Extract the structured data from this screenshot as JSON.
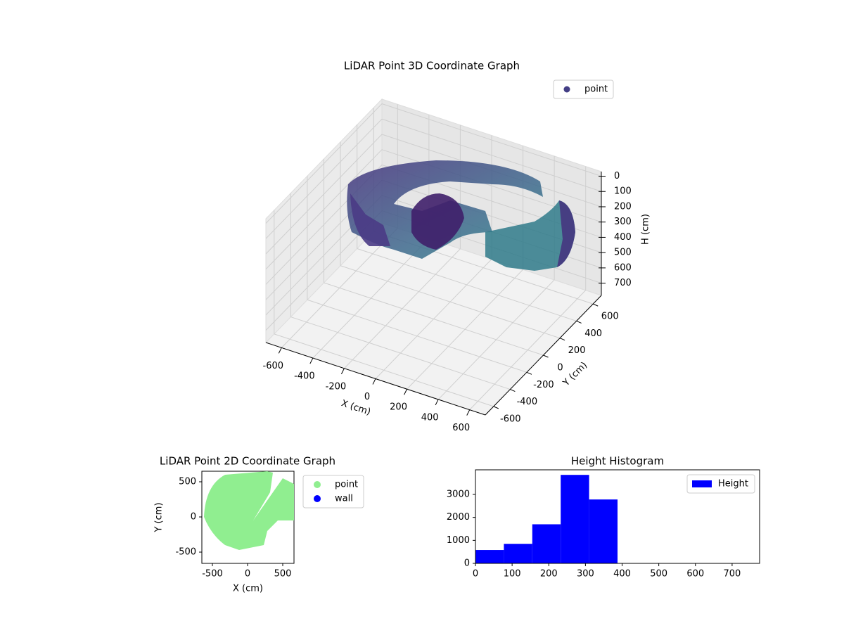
{
  "chart_data": [
    {
      "type": "scatter3d",
      "title": "LiDAR Point 3D Coordinate Graph",
      "xlabel": "X (cm)",
      "ylabel": "Y (cm)",
      "zlabel": "H (cm)",
      "series": [
        {
          "name": "point",
          "color": "#433e85"
        }
      ],
      "xlim": [
        -700,
        700
      ],
      "ylim": [
        -700,
        700
      ],
      "zlim": [
        780,
        -30
      ],
      "xticks": [
        -600,
        -400,
        -200,
        0,
        200,
        400,
        600
      ],
      "yticks": [
        -600,
        -400,
        -200,
        0,
        200,
        400,
        600
      ],
      "zticks": [
        0,
        100,
        200,
        300,
        400,
        500,
        600,
        700
      ],
      "grid": true,
      "legend": "upper right"
    },
    {
      "type": "scatter",
      "title": "LiDAR Point 2D Coordinate Graph",
      "xlabel": "X (cm)",
      "ylabel": "Y (cm)",
      "series": [
        {
          "name": "point",
          "color": "#90ee90"
        },
        {
          "name": "wall",
          "color": "#0000ff"
        }
      ],
      "xlim": [
        -650,
        660
      ],
      "ylim": [
        -660,
        650
      ],
      "xticks": [
        -500,
        0,
        500
      ],
      "yticks": [
        -500,
        0,
        500
      ],
      "legend": "outside right"
    },
    {
      "type": "histogram",
      "title": "Height Histogram",
      "series": [
        {
          "name": "Height",
          "color": "#0000ff"
        }
      ],
      "bins": [
        0,
        77.5,
        155,
        232.5,
        310,
        387.5,
        465,
        542.5,
        620,
        697.5,
        775
      ],
      "values": [
        580,
        850,
        1700,
        3850,
        2780,
        0,
        0,
        0,
        0,
        0
      ],
      "xlim": [
        0,
        775
      ],
      "ylim": [
        0,
        4070
      ],
      "xticks": [
        0,
        100,
        200,
        300,
        400,
        500,
        600,
        700
      ],
      "yticks": [
        0,
        1000,
        2000,
        3000
      ],
      "legend": "upper right"
    }
  ]
}
